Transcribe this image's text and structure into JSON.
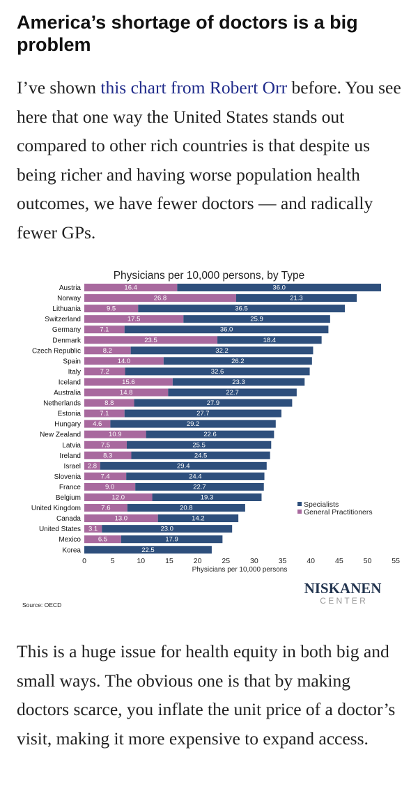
{
  "article": {
    "heading": "America’s shortage of doctors is a big problem",
    "para1_before": "I’ve shown ",
    "para1_link": "this chart from Robert Orr",
    "para1_after": " before. You see here that one way the United States stands out compared to other rich countries is that despite us being richer and having worse population health outcomes, we have fewer doctors — and radically fewer GPs.",
    "para2": "This is a huge issue for health equity in both big and small ways. The obvious one is that by making doctors scarce, you inflate the unit price of a doctor’s visit, making it more expensive to expand access."
  },
  "chart_data": {
    "type": "bar",
    "orientation": "horizontal",
    "stacked": true,
    "title": "Physicians per 10,000 persons, by Type",
    "xlabel": "Physicians per 10,000 persons",
    "ylabel": "",
    "xlim": [
      0,
      55
    ],
    "xticks": [
      0,
      5,
      10,
      15,
      20,
      25,
      30,
      35,
      40,
      45,
      50,
      55
    ],
    "categories": [
      "Austria",
      "Norway",
      "Lithuania",
      "Switzerland",
      "Germany",
      "Denmark",
      "Czech Republic",
      "Spain",
      "Italy",
      "Iceland",
      "Australia",
      "Netherlands",
      "Estonia",
      "Hungary",
      "New Zealand",
      "Latvia",
      "Ireland",
      "Israel",
      "Slovenia",
      "France",
      "Belgium",
      "United Kingdom",
      "Canada",
      "United States",
      "Mexico",
      "Korea"
    ],
    "series": [
      {
        "name": "General Practitioners",
        "color": "#a8699e",
        "values": [
          16.4,
          26.8,
          9.5,
          17.5,
          7.1,
          23.5,
          8.2,
          14.0,
          7.2,
          15.6,
          14.8,
          8.8,
          7.1,
          4.6,
          10.9,
          7.5,
          8.3,
          2.8,
          7.4,
          9.0,
          12.0,
          7.6,
          13.0,
          3.1,
          6.5,
          null
        ]
      },
      {
        "name": "Specialists",
        "color": "#2e4f7c",
        "values": [
          36.0,
          21.3,
          36.5,
          25.9,
          36.0,
          18.4,
          32.2,
          26.2,
          32.6,
          23.3,
          22.7,
          27.9,
          27.7,
          29.2,
          22.6,
          25.5,
          24.5,
          29.4,
          24.4,
          22.7,
          19.3,
          20.8,
          14.2,
          23.0,
          17.9,
          22.5
        ]
      }
    ],
    "value_labels": [
      [
        "16.4",
        "36.0"
      ],
      [
        "26.8",
        "21.3"
      ],
      [
        "9.5",
        "36.5"
      ],
      [
        "17.5",
        "25.9"
      ],
      [
        "7.1",
        "36.0"
      ],
      [
        "23.5",
        "18.4"
      ],
      [
        "8.2",
        "32.2"
      ],
      [
        "14.0",
        "26.2"
      ],
      [
        "7.2",
        "32.6"
      ],
      [
        "15.6",
        "23.3"
      ],
      [
        "14.8",
        "22.7"
      ],
      [
        "8.8",
        "27.9"
      ],
      [
        "7.1",
        "27.7"
      ],
      [
        "4.6",
        "29.2"
      ],
      [
        "10.9",
        "22.6"
      ],
      [
        "7.5",
        "25.5"
      ],
      [
        "8.3",
        "24.5"
      ],
      [
        "2.8",
        "29.4"
      ],
      [
        "7.4",
        "24.4"
      ],
      [
        "9.0",
        "22.7"
      ],
      [
        "12.0",
        "19.3"
      ],
      [
        "7.6",
        "20.8"
      ],
      [
        "13.0",
        "14.2"
      ],
      [
        "3.1",
        "23.0"
      ],
      [
        "6.5",
        "17.9"
      ],
      [
        "",
        "22.5"
      ]
    ],
    "legend": {
      "position": "lower-right",
      "entries": [
        "Specialists",
        "General Practitioners"
      ]
    },
    "source": "Source: OECD",
    "brand_top": "NISKANEN",
    "brand_bottom": "C E N T E R",
    "grid": false
  }
}
